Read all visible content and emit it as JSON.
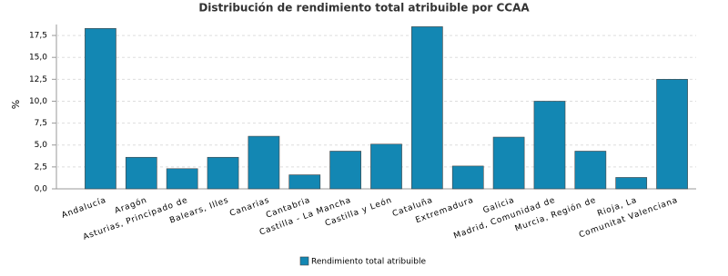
{
  "chart_data": {
    "type": "bar",
    "title": "Distribución de rendimiento total atribuible por CCAA",
    "y_label": "%",
    "categories": [
      "Andalucía",
      "Aragón",
      "Asturias, Principado de",
      "Balears, Illes",
      "Canarias",
      "Cantabria",
      "Castilla - La Mancha",
      "Castilla y León",
      "Cataluña",
      "Extremadura",
      "Galicia",
      "Madrid, Comunidad de",
      "Murcia, Región de",
      "Rioja, La",
      "Comunitat Valenciana"
    ],
    "series": [
      {
        "name": "Rendimiento total atribuible",
        "color": "#1387b3",
        "values": [
          18.3,
          3.6,
          2.3,
          3.6,
          6.0,
          1.6,
          4.3,
          5.1,
          18.5,
          2.6,
          5.9,
          10.0,
          4.3,
          1.3,
          12.5
        ]
      }
    ],
    "ylim": [
      0,
      18.75
    ],
    "yticks": [
      {
        "value": 0,
        "label": "0,0"
      },
      {
        "value": 2.5,
        "label": "2,5"
      },
      {
        "value": 5,
        "label": "5,0"
      },
      {
        "value": 7.5,
        "label": "7,5"
      },
      {
        "value": 10,
        "label": "10,0"
      },
      {
        "value": 12.5,
        "label": "12,5"
      },
      {
        "value": 15,
        "label": "15,0"
      },
      {
        "value": 17.5,
        "label": "17,5"
      }
    ],
    "grid": true
  }
}
